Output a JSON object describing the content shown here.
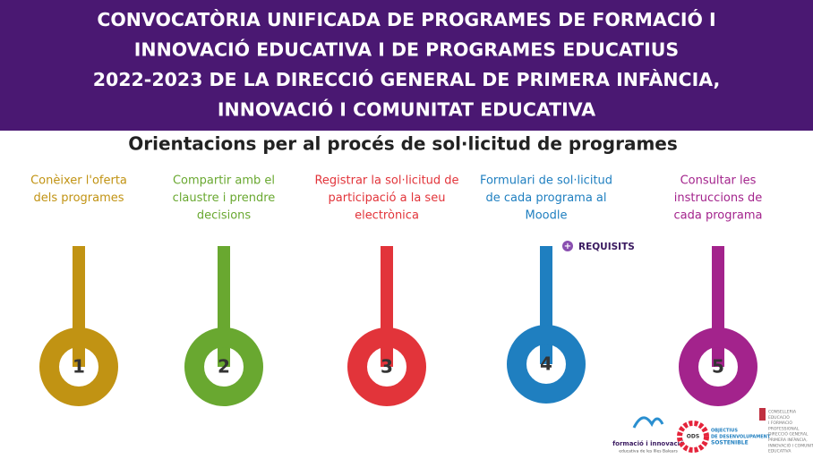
{
  "header": {
    "title_lines": [
      "CONVOCATÒRIA UNIFICADA DE PROGRAMES DE FORMACIÓ I",
      "INNOVACIÓ EDUCATIVA I DE PROGRAMES EDUCATIUS",
      "2022-2023 DE LA DIRECCIÓ GENERAL DE PRIMERA INFÀNCIA,",
      "INNOVACIÓ I COMUNITAT EDUCATIVA"
    ]
  },
  "subtitle": "Orientacions per al procés de sol·licitud de programes",
  "steps": [
    {
      "label_lines": [
        "Conèixer l'oferta",
        "dels programes"
      ],
      "number": "1",
      "color": "#c19313"
    },
    {
      "label_lines": [
        "Compartir amb el",
        "claustre i prendre",
        "decisions"
      ],
      "number": "2",
      "color": "#69a830"
    },
    {
      "label_lines": [
        "Registrar la sol·licitud de",
        "participació a la seu",
        "electrònica"
      ],
      "number": "3",
      "color": "#e2343a"
    },
    {
      "label_lines": [
        "Formulari de sol·licitud",
        "de cada programa al",
        "Moodle"
      ],
      "number": "4",
      "color": "#1f7fc0"
    },
    {
      "label_lines": [
        "Consultar les",
        "instruccions de",
        "cada programa"
      ],
      "number": "5",
      "color": "#a3238c"
    }
  ],
  "requisits": {
    "icon": "+",
    "label": "REQUISITS"
  },
  "logos": {
    "formacio": "formació i innovació",
    "formacio_sub": "educativa de les Illes Balears",
    "ods": "ODS",
    "ods_text": [
      "OBJECTIUS",
      "DE DESENVOLUPAMENT",
      "SOSTENIBLE"
    ],
    "conselleria": [
      "CONSELLERIA",
      "EDUCACIÓ",
      "I FORMACIÓ",
      "PROFESSIONAL",
      "DIRECCIÓ GENERAL",
      "PRIMERA INFÀNCIA,",
      "INNOVACIÓ I COMUNITAT",
      "EDUCATIVA"
    ]
  }
}
